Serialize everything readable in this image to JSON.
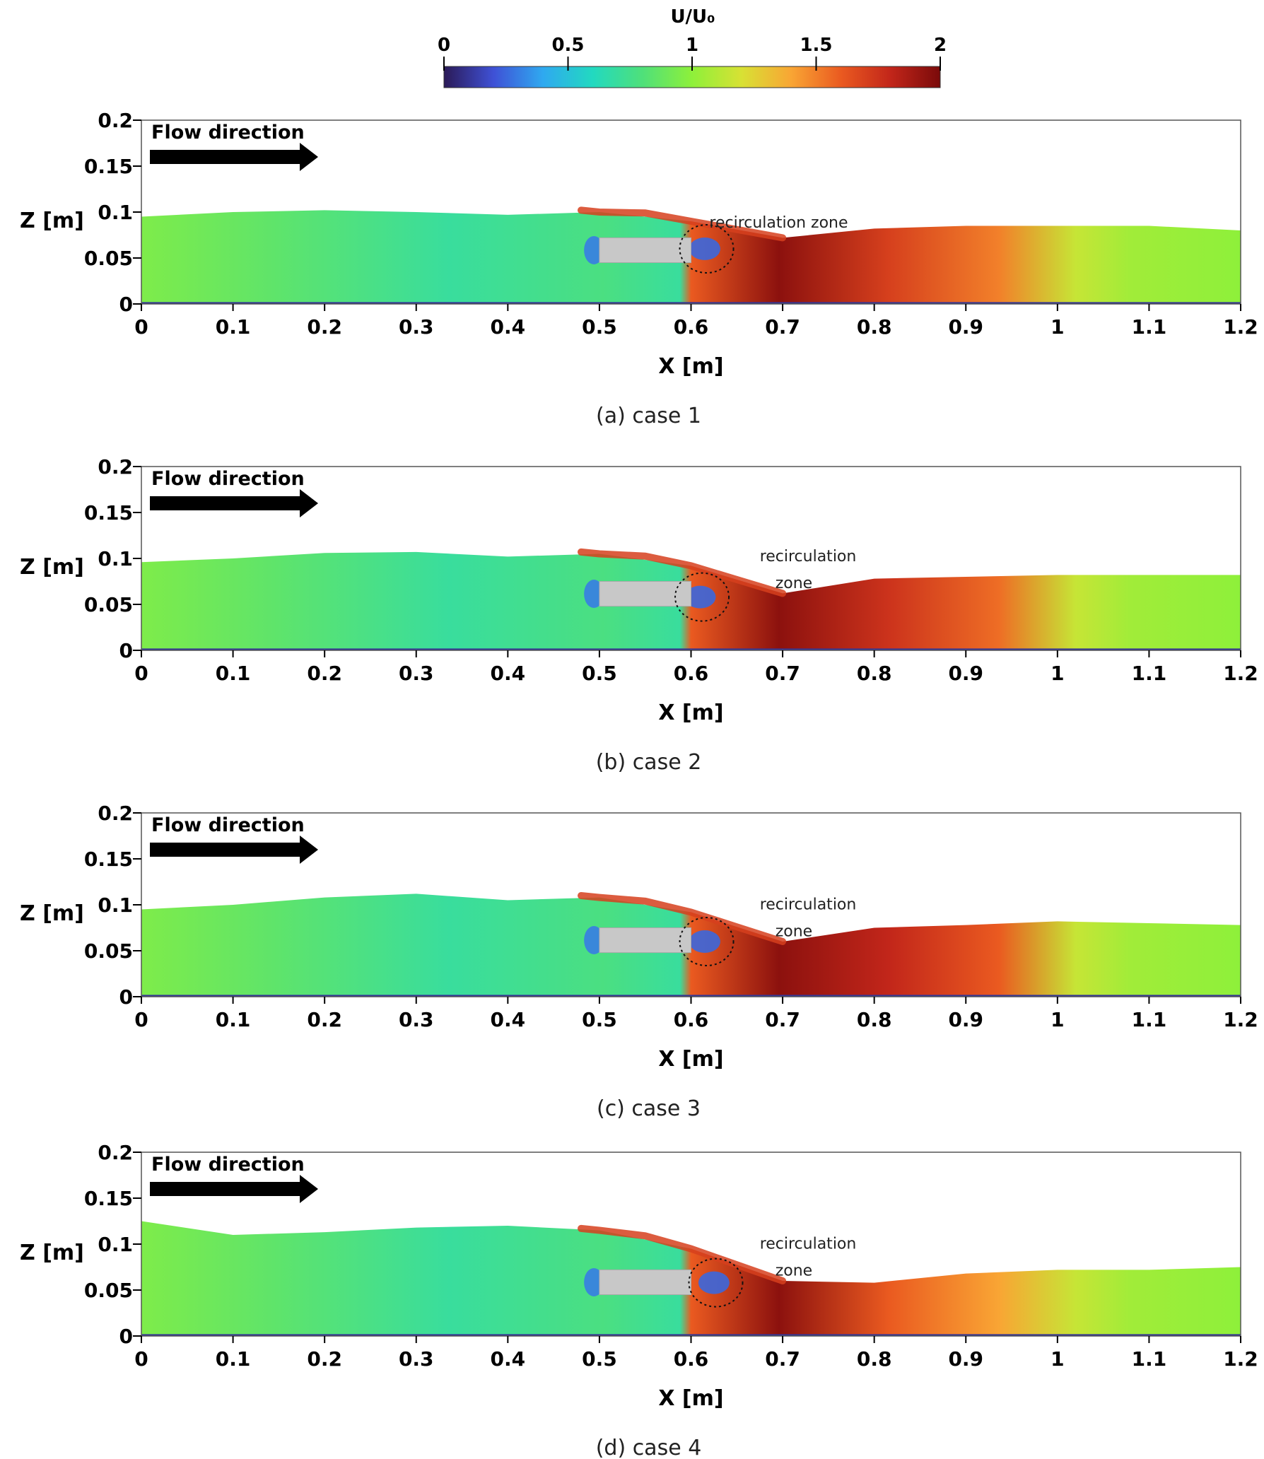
{
  "colorbar": {
    "title": "U/U₀",
    "ticks": [
      "0",
      "0.5",
      "1",
      "1.5",
      "2"
    ],
    "tick_values": [
      0,
      0.5,
      1,
      1.5,
      2
    ],
    "range": [
      0,
      2
    ],
    "colors": [
      "#2b1a57",
      "#3f51d6",
      "#2fa9f0",
      "#22d9c0",
      "#4fe07a",
      "#8ef03a",
      "#d8e134",
      "#f9a534",
      "#ea5a20",
      "#c2261a",
      "#7a0a0a"
    ]
  },
  "chart_data": [
    {
      "type": "heatmap",
      "caption": "(a) case 1",
      "xlabel": "X [m]",
      "ylabel": "Z [m]",
      "xlim": [
        0,
        1.2
      ],
      "ylim": [
        0,
        0.2
      ],
      "xticks": [
        "0",
        "0.1",
        "0.2",
        "0.3",
        "0.4",
        "0.5",
        "0.6",
        "0.7",
        "0.8",
        "0.9",
        "1",
        "1.1",
        "1.2"
      ],
      "yticks": [
        "0",
        "0.05",
        "0.1",
        "0.15",
        "0.2"
      ],
      "flow_label": "Flow direction",
      "annotation": [
        "recirculation zone"
      ],
      "obstacle": {
        "x": [
          0.5,
          0.6
        ],
        "z": [
          0.045,
          0.072
        ]
      },
      "recirculation_center": {
        "x": 0.615,
        "z": 0.06
      },
      "free_surface_z": [
        0.095,
        0.1,
        0.102,
        0.1,
        0.097,
        0.1,
        0.09,
        0.072,
        0.082,
        0.085,
        0.085,
        0.085,
        0.08
      ],
      "downstream_jet_ratio": 1.7
    },
    {
      "type": "heatmap",
      "caption": "(b) case 2",
      "xlabel": "X [m]",
      "ylabel": "Z [m]",
      "xlim": [
        0,
        1.2
      ],
      "ylim": [
        0,
        0.2
      ],
      "xticks": [
        "0",
        "0.1",
        "0.2",
        "0.3",
        "0.4",
        "0.5",
        "0.6",
        "0.7",
        "0.8",
        "0.9",
        "1",
        "1.1",
        "1.2"
      ],
      "yticks": [
        "0",
        "0.05",
        "0.1",
        "0.15",
        "0.2"
      ],
      "flow_label": "Flow direction",
      "annotation": [
        "recirculation",
        "zone"
      ],
      "obstacle": {
        "x": [
          0.5,
          0.6
        ],
        "z": [
          0.048,
          0.075
        ]
      },
      "recirculation_center": {
        "x": 0.61,
        "z": 0.058
      },
      "free_surface_z": [
        0.096,
        0.1,
        0.106,
        0.107,
        0.102,
        0.105,
        0.092,
        0.062,
        0.078,
        0.08,
        0.082,
        0.082,
        0.082
      ],
      "downstream_jet_ratio": 1.75
    },
    {
      "type": "heatmap",
      "caption": "(c) case 3",
      "xlabel": "X [m]",
      "ylabel": "Z [m]",
      "xlim": [
        0,
        1.2
      ],
      "ylim": [
        0,
        0.2
      ],
      "xticks": [
        "0",
        "0.1",
        "0.2",
        "0.3",
        "0.4",
        "0.5",
        "0.6",
        "0.7",
        "0.8",
        "0.9",
        "1",
        "1.1",
        "1.2"
      ],
      "yticks": [
        "0",
        "0.05",
        "0.1",
        "0.15",
        "0.2"
      ],
      "flow_label": "Flow direction",
      "annotation": [
        "recirculation",
        "zone"
      ],
      "obstacle": {
        "x": [
          0.5,
          0.6
        ],
        "z": [
          0.048,
          0.075
        ]
      },
      "recirculation_center": {
        "x": 0.615,
        "z": 0.06
      },
      "free_surface_z": [
        0.095,
        0.1,
        0.108,
        0.112,
        0.105,
        0.108,
        0.092,
        0.06,
        0.075,
        0.078,
        0.082,
        0.08,
        0.078
      ],
      "downstream_jet_ratio": 1.8
    },
    {
      "type": "heatmap",
      "caption": "(d) case 4",
      "xlabel": "X [m]",
      "ylabel": "Z [m]",
      "xlim": [
        0,
        1.2
      ],
      "ylim": [
        0,
        0.2
      ],
      "xticks": [
        "0",
        "0.1",
        "0.2",
        "0.3",
        "0.4",
        "0.5",
        "0.6",
        "0.7",
        "0.8",
        "0.9",
        "1",
        "1.1",
        "1.2"
      ],
      "yticks": [
        "0",
        "0.05",
        "0.1",
        "0.15",
        "0.2"
      ],
      "flow_label": "Flow direction",
      "annotation": [
        "recirculation",
        "zone"
      ],
      "obstacle": {
        "x": [
          0.5,
          0.6
        ],
        "z": [
          0.045,
          0.072
        ]
      },
      "recirculation_center": {
        "x": 0.625,
        "z": 0.058
      },
      "free_surface_z": [
        0.125,
        0.11,
        0.113,
        0.118,
        0.12,
        0.115,
        0.095,
        0.06,
        0.058,
        0.068,
        0.072,
        0.072,
        0.075
      ],
      "downstream_jet_ratio": 1.6
    }
  ]
}
